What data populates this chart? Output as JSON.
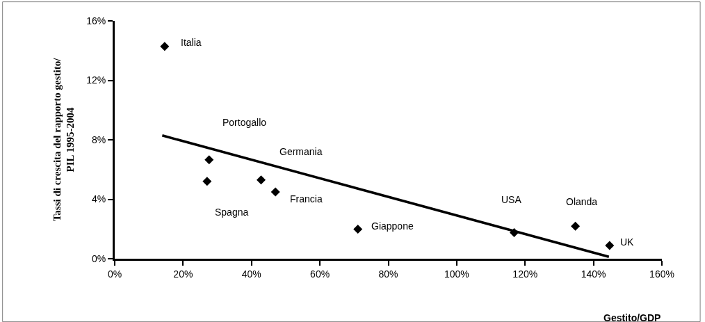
{
  "chart_data": {
    "type": "scatter",
    "xlabel": "Gestito/GDP",
    "ylabel": "Tassi di crescita del rapporto gestito/\nPIL 1995-2004",
    "series": [
      {
        "type": "scatter",
        "color": "#000000",
        "x": [
          14.6,
          27.6,
          27.0,
          42.8,
          47.0,
          71.1,
          116.8,
          134.7,
          144.7
        ],
        "values": [
          14.28,
          6.65,
          5.21,
          5.3,
          4.49,
          1.99,
          1.75,
          2.19,
          0.89
        ]
      },
      {
        "type": "line",
        "color": "#000000",
        "marker": "none",
        "line_style": "solid",
        "x": [
          13.9,
          144.5
        ],
        "values": [
          8.29,
          0.13
        ]
      }
    ],
    "annotations": [
      {
        "text": "Italia",
        "x": 14.6,
        "y": 14.28
      },
      "Portogallo",
      {
        "text": "Spagna",
        "x": 27.0,
        "y": 5.21
      },
      "Germania",
      {
        "text": "Francia",
        "x": 47.0,
        "y": 4.49
      },
      {
        "text": "Giappone",
        "x": 71.1,
        "y": 1.99
      },
      {
        "text": "USA",
        "x": 116.8,
        "y": 1.75
      },
      {
        "text": "Olanda",
        "x": 134.7,
        "y": 2.19
      },
      {
        "text": "UK",
        "x": 144.7,
        "y": 0.89
      }
    ],
    "xlim": [
      0,
      160
    ],
    "xticks": [
      {
        "value": 0,
        "label": "0%"
      },
      {
        "value": 20,
        "label": "20%"
      },
      {
        "value": 40,
        "label": "40%"
      },
      {
        "value": 60,
        "label": "60%"
      },
      {
        "value": 80,
        "label": "80%"
      },
      {
        "value": 100,
        "label": "100%"
      },
      {
        "value": 120,
        "label": "120%"
      },
      {
        "value": 140,
        "label": "140%"
      },
      {
        "value": 160,
        "label": "160%"
      }
    ],
    "ylim": [
      0,
      16
    ],
    "yticks": [
      {
        "value": 0,
        "label": "0%"
      },
      {
        "value": 4,
        "label": "4%"
      },
      {
        "value": 8,
        "label": "8%"
      },
      {
        "value": 12,
        "label": "12%"
      },
      {
        "value": 16,
        "label": "16%"
      }
    ],
    "marker": "diamond"
  }
}
